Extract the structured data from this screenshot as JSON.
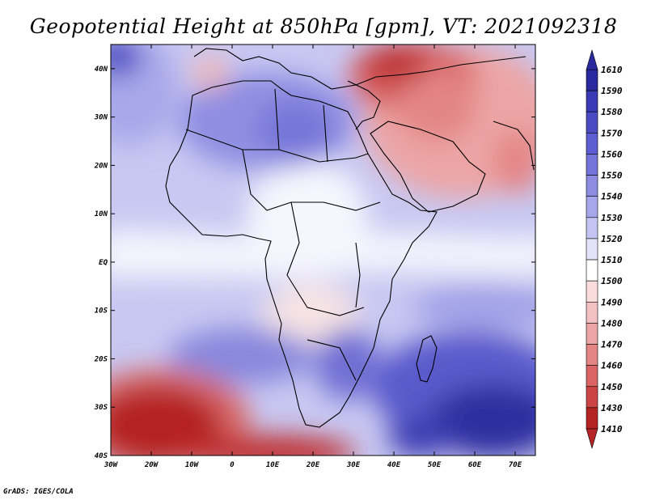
{
  "title": "Geopotential Height at 850hPa [gpm], VT: 2021092318",
  "credit": "GrADS: IGES/COLA",
  "map": {
    "lon_labels": [
      "30W",
      "20W",
      "10W",
      "0",
      "10E",
      "20E",
      "30E",
      "40E",
      "50E",
      "60E",
      "70E"
    ],
    "lat_labels": [
      "40N",
      "30N",
      "20N",
      "10N",
      "EQ",
      "10S",
      "20S",
      "30S",
      "40S"
    ],
    "lon_range": [
      -30,
      75
    ],
    "lat_range": [
      -40,
      45
    ]
  },
  "colorbar": {
    "labels": [
      "1610",
      "1590",
      "1580",
      "1570",
      "1560",
      "1550",
      "1540",
      "1530",
      "1520",
      "1510",
      "1500",
      "1490",
      "1480",
      "1470",
      "1460",
      "1450",
      "1430",
      "1410"
    ],
    "colors": [
      "#2a2a9e",
      "#3a3ab4",
      "#4b4bc4",
      "#5e5ed0",
      "#7474da",
      "#8c8ce2",
      "#a6a6ea",
      "#c4c4f2",
      "#e2e2f9",
      "#ffffff",
      "#f9dcdc",
      "#f3c1c1",
      "#eca5a5",
      "#e48585",
      "#da6464",
      "#cc4444",
      "#b52424"
    ]
  }
}
